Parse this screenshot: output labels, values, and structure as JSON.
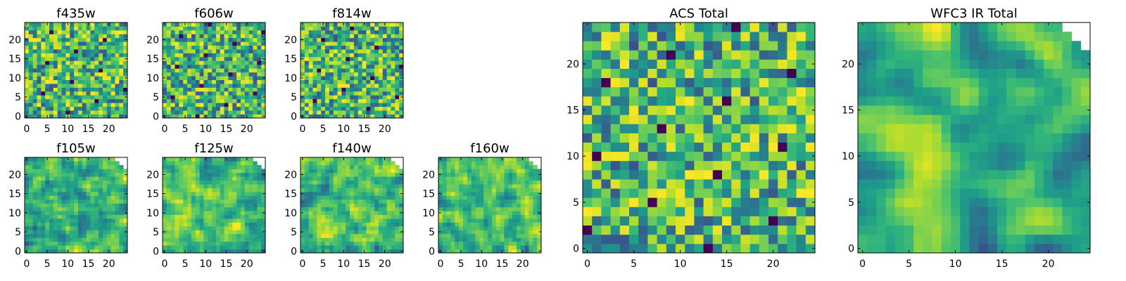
{
  "colors": {
    "colormap": "viridis",
    "background": "#ffffff",
    "axes_frame": "#000000"
  },
  "chart_data": [
    {
      "type": "heatmap",
      "title": "f435w",
      "x_ticks": [
        0,
        5,
        10,
        15,
        20
      ],
      "y_ticks": [
        0,
        5,
        10,
        15,
        20
      ],
      "xlim": [
        0,
        24
      ],
      "ylim": [
        0,
        24
      ],
      "grid": false,
      "legend": "none",
      "masked_corner": "none",
      "seed": 11,
      "smooth": 0
    },
    {
      "type": "heatmap",
      "title": "f606w",
      "x_ticks": [
        0,
        5,
        10,
        15,
        20
      ],
      "y_ticks": [
        0,
        5,
        10,
        15,
        20
      ],
      "xlim": [
        0,
        24
      ],
      "ylim": [
        0,
        24
      ],
      "grid": false,
      "legend": "none",
      "masked_corner": "none",
      "seed": 23,
      "smooth": 0
    },
    {
      "type": "heatmap",
      "title": "f814w",
      "x_ticks": [
        0,
        5,
        10,
        15,
        20
      ],
      "y_ticks": [
        0,
        5,
        10,
        15,
        20
      ],
      "xlim": [
        0,
        24
      ],
      "ylim": [
        0,
        24
      ],
      "grid": false,
      "legend": "none",
      "masked_corner": "none",
      "seed": 37,
      "smooth": 0
    },
    {
      "type": "heatmap",
      "title": "f105w",
      "x_ticks": [
        0,
        5,
        10,
        15,
        20
      ],
      "y_ticks": [
        0,
        5,
        10,
        15,
        20
      ],
      "xlim": [
        0,
        24
      ],
      "ylim": [
        0,
        24
      ],
      "grid": false,
      "legend": "none",
      "masked_corner": "top-right",
      "seed": 41,
      "smooth": 1
    },
    {
      "type": "heatmap",
      "title": "f125w",
      "x_ticks": [
        0,
        5,
        10,
        15,
        20
      ],
      "y_ticks": [
        0,
        5,
        10,
        15,
        20
      ],
      "xlim": [
        0,
        24
      ],
      "ylim": [
        0,
        24
      ],
      "grid": false,
      "legend": "none",
      "masked_corner": "top-right",
      "seed": 53,
      "smooth": 1
    },
    {
      "type": "heatmap",
      "title": "f140w",
      "x_ticks": [
        0,
        5,
        10,
        15,
        20
      ],
      "y_ticks": [
        0,
        5,
        10,
        15,
        20
      ],
      "xlim": [
        0,
        24
      ],
      "ylim": [
        0,
        24
      ],
      "grid": false,
      "legend": "none",
      "masked_corner": "top-right",
      "seed": 67,
      "smooth": 1
    },
    {
      "type": "heatmap",
      "title": "f160w",
      "x_ticks": [
        0,
        5,
        10,
        15,
        20
      ],
      "y_ticks": [
        0,
        5,
        10,
        15,
        20
      ],
      "xlim": [
        0,
        24
      ],
      "ylim": [
        0,
        24
      ],
      "grid": false,
      "legend": "none",
      "masked_corner": "top-right",
      "seed": 79,
      "smooth": 1
    },
    {
      "type": "heatmap",
      "title": "ACS Total",
      "x_ticks": [
        0,
        5,
        10,
        15,
        20
      ],
      "y_ticks": [
        0,
        5,
        10,
        15,
        20
      ],
      "xlim": [
        0,
        24
      ],
      "ylim": [
        0,
        24
      ],
      "grid": false,
      "legend": "none",
      "masked_corner": "none",
      "seed": 97,
      "smooth": 0
    },
    {
      "type": "heatmap",
      "title": "WFC3 IR Total",
      "x_ticks": [
        0,
        5,
        10,
        15,
        20
      ],
      "y_ticks": [
        0,
        5,
        10,
        15,
        20
      ],
      "xlim": [
        0,
        24
      ],
      "ylim": [
        0,
        24
      ],
      "grid": false,
      "legend": "none",
      "masked_corner": "top-right",
      "seed": 101,
      "smooth": 2
    }
  ]
}
